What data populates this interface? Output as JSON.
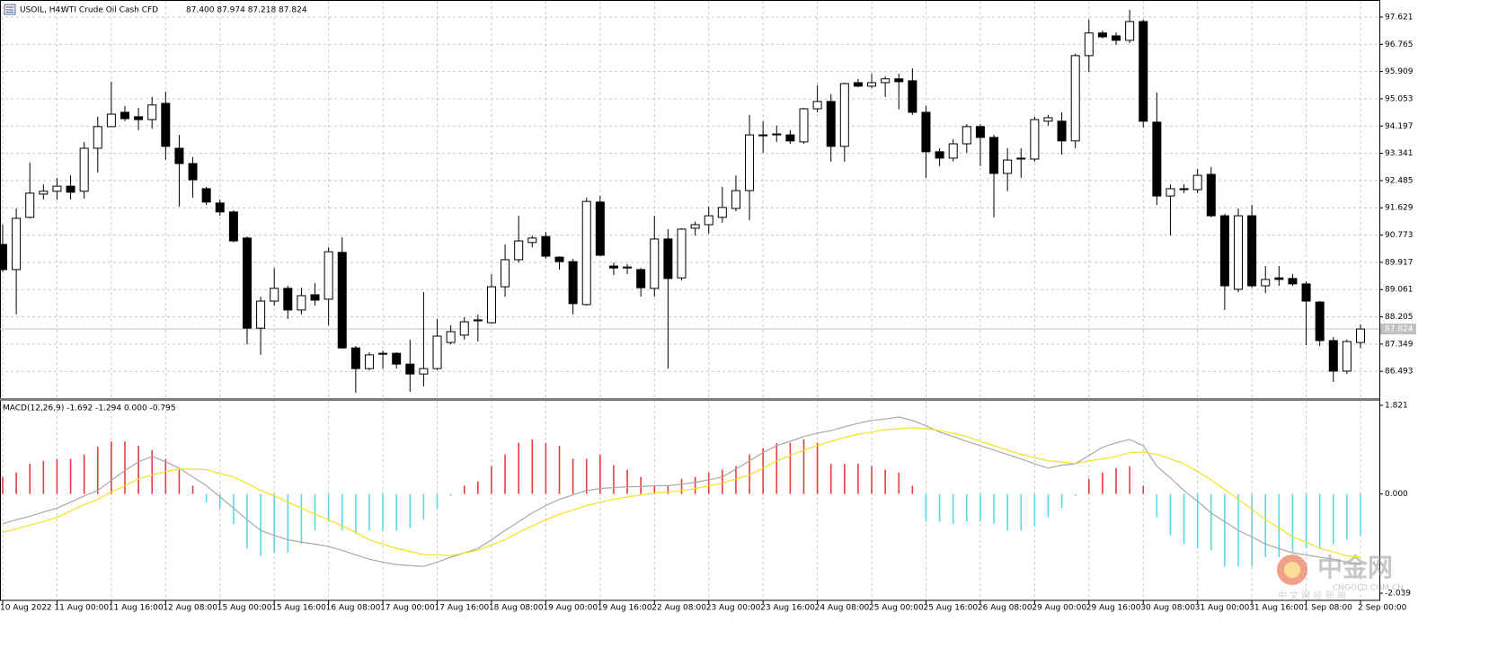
{
  "chart_data": [
    {
      "type": "candlestick",
      "title": "USOIL, H4:",
      "subtitle": "WTI Crude Oil Cash CFD",
      "ohlc_label": "87.400 87.974 87.218 87.824",
      "x": [
        "10 Aug 2022",
        null,
        null,
        null,
        "11 Aug 00:00",
        null,
        null,
        null,
        "11 Aug 16:00",
        null,
        null,
        null,
        "12 Aug 08:00",
        null,
        null,
        null,
        "15 Aug 00:00",
        null,
        null,
        null,
        "15 Aug 16:00",
        null,
        null,
        null,
        "16 Aug 08:00",
        null,
        null,
        null,
        "17 Aug 00:00",
        null,
        null,
        null,
        "17 Aug 16:00",
        null,
        null,
        null,
        "18 Aug 08:00",
        null,
        null,
        null,
        "19 Aug 00:00",
        null,
        null,
        null,
        "19 Aug 16:00",
        null,
        null,
        null,
        "22 Aug 08:00",
        null,
        null,
        null,
        "23 Aug 00:00",
        null,
        null,
        null,
        "23 Aug 16:00",
        null,
        null,
        null,
        "24 Aug 08:00",
        null,
        null,
        null,
        "25 Aug 00:00",
        null,
        null,
        null,
        "25 Aug 16:00",
        null,
        null,
        null,
        "26 Aug 08:00",
        null,
        null,
        null,
        "29 Aug 00:00",
        null,
        null,
        null,
        "29 Aug 16:00",
        null,
        null,
        null,
        "30 Aug 08:00",
        null,
        null,
        null,
        "31 Aug 00:00",
        null,
        null,
        null,
        "31 Aug 16:00",
        null,
        null,
        null,
        "1 Sep 08:00",
        null,
        null,
        null,
        "2 Sep 00:00"
      ],
      "open": [
        90.48,
        89.69,
        91.33,
        92.06,
        92.15,
        92.31,
        92.15,
        93.5,
        94.18,
        94.63,
        94.49,
        94.4,
        94.91,
        93.5,
        93.02,
        92.23,
        91.78,
        91.5,
        90.68,
        87.85,
        88.7,
        89.1,
        88.42,
        88.9,
        88.76,
        90.23,
        87.23,
        86.58,
        87.06,
        87.06,
        86.72,
        86.41,
        86.58,
        87.4,
        87.63,
        88.08,
        88.02,
        89.15,
        90.0,
        90.54,
        90.73,
        90.08,
        89.94,
        88.59,
        91.81,
        89.8,
        89.74,
        89.69,
        89.1,
        90.65,
        89.43,
        90.99,
        91.1,
        91.33,
        91.61,
        92.17,
        93.92,
        93.92,
        93.92,
        93.7,
        94.74,
        94.97,
        93.56,
        95.56,
        95.45,
        95.56,
        95.68,
        95.62,
        94.63,
        93.39,
        93.19,
        93.64,
        94.18,
        93.84,
        92.71,
        93.16,
        93.16,
        94.35,
        94.35,
        93.73,
        96.41,
        97.12,
        97.03,
        96.89,
        97.48,
        94.32,
        92.0,
        92.23,
        92.2,
        92.68,
        91.38,
        89.07,
        91.38,
        89.18,
        89.43,
        89.41,
        89.24,
        88.67,
        87.46,
        86.5,
        87.4
      ],
      "high": [
        91.1,
        91.61,
        93.05,
        92.37,
        92.57,
        92.65,
        93.7,
        94.49,
        95.59,
        94.83,
        94.77,
        95.11,
        95.28,
        93.92,
        93.22,
        92.29,
        91.89,
        91.55,
        90.73,
        88.84,
        89.74,
        89.18,
        89.12,
        89.26,
        90.39,
        90.7,
        87.29,
        87.09,
        87.15,
        87.09,
        87.49,
        88.98,
        88.14,
        87.94,
        88.19,
        88.28,
        89.55,
        90.48,
        91.38,
        90.76,
        90.87,
        90.11,
        90.03,
        91.95,
        92.0,
        89.91,
        89.86,
        89.74,
        91.38,
        90.96,
        90.99,
        91.19,
        91.67,
        92.29,
        92.65,
        94.55,
        94.35,
        94.21,
        94.07,
        94.77,
        95.48,
        95.2,
        95.56,
        95.68,
        95.84,
        95.76,
        95.84,
        96.01,
        94.83,
        93.5,
        93.78,
        94.26,
        94.26,
        93.92,
        93.5,
        93.5,
        94.49,
        94.55,
        94.63,
        96.47,
        97.54,
        97.2,
        97.14,
        97.85,
        97.54,
        95.25,
        92.37,
        92.37,
        92.85,
        92.91,
        91.44,
        91.61,
        91.72,
        89.8,
        89.8,
        89.55,
        89.32,
        88.7,
        87.57,
        87.49,
        87.974
      ],
      "low": [
        89.63,
        88.28,
        91.3,
        91.89,
        91.89,
        91.89,
        91.92,
        92.74,
        94.18,
        94.35,
        94.07,
        94.12,
        93.13,
        91.67,
        91.95,
        91.72,
        91.38,
        90.54,
        87.34,
        87.01,
        88.56,
        88.14,
        88.28,
        88.56,
        87.94,
        87.2,
        85.82,
        86.53,
        86.58,
        86.58,
        85.85,
        86.02,
        86.53,
        87.34,
        87.49,
        87.43,
        87.99,
        88.84,
        89.91,
        90.39,
        90.03,
        89.69,
        88.28,
        88.56,
        90.11,
        89.52,
        89.55,
        88.84,
        88.84,
        86.58,
        89.35,
        90.76,
        90.82,
        91.16,
        91.52,
        91.24,
        93.36,
        93.7,
        93.64,
        93.64,
        94.63,
        93.08,
        93.08,
        95.42,
        95.39,
        95.11,
        94.72,
        94.55,
        92.57,
        92.94,
        93.08,
        93.36,
        92.94,
        91.33,
        92.15,
        92.57,
        93.08,
        94.21,
        93.3,
        93.5,
        95.9,
        96.95,
        96.75,
        96.8,
        94.15,
        91.72,
        90.76,
        92.09,
        92.09,
        91.33,
        88.42,
        88.98,
        89.12,
        88.95,
        89.18,
        89.18,
        87.32,
        87.29,
        86.16,
        86.41,
        87.218
      ],
      "close": [
        89.69,
        91.3,
        92.09,
        92.15,
        92.31,
        92.12,
        93.5,
        94.18,
        94.57,
        94.43,
        94.4,
        94.86,
        93.56,
        93.02,
        92.51,
        91.81,
        91.5,
        90.59,
        87.85,
        88.7,
        89.1,
        88.42,
        88.87,
        88.73,
        90.25,
        87.23,
        86.58,
        87.01,
        87.03,
        86.72,
        86.41,
        86.58,
        87.6,
        87.74,
        88.05,
        88.11,
        89.15,
        90.0,
        90.59,
        90.68,
        90.11,
        89.94,
        88.62,
        91.83,
        90.14,
        89.74,
        89.77,
        89.12,
        90.65,
        89.41,
        90.96,
        91.1,
        91.38,
        91.64,
        92.17,
        93.92,
        93.9,
        93.95,
        93.73,
        94.74,
        94.97,
        93.56,
        95.53,
        95.45,
        95.56,
        95.68,
        95.59,
        94.63,
        93.39,
        93.19,
        93.64,
        94.18,
        93.84,
        92.71,
        93.13,
        93.19,
        94.4,
        94.46,
        93.73,
        96.41,
        97.12,
        97.0,
        96.89,
        97.48,
        94.35,
        92.0,
        92.23,
        92.2,
        92.65,
        91.38,
        89.18,
        91.38,
        89.18,
        89.38,
        89.38,
        89.24,
        88.7,
        87.46,
        86.5,
        87.43,
        87.824
      ],
      "up_color": "#ffffff",
      "down_color": "#000000",
      "last_price": 87.824,
      "ylim": [
        85.68,
        98.1
      ],
      "yticks": [
        97.621,
        96.765,
        95.909,
        95.053,
        94.197,
        93.341,
        92.485,
        91.629,
        90.773,
        89.917,
        89.061,
        88.205,
        87.349,
        86.493
      ],
      "grid": true
    },
    {
      "type": "macd",
      "title": "MACD(12,26,9) -1.692 -1.294 0.000 -0.795",
      "histogram": {
        "values": [
          0.35,
          0.44,
          0.62,
          0.68,
          0.72,
          0.72,
          0.81,
          0.97,
          1.08,
          1.08,
          0.99,
          0.9,
          0.72,
          0.5,
          0.17,
          -0.17,
          -0.29,
          -0.62,
          -1.12,
          -1.27,
          -1.21,
          -1.21,
          -1.03,
          -0.75,
          -0.57,
          -0.75,
          -0.81,
          -0.75,
          -0.75,
          -0.75,
          -0.7,
          -0.53,
          -0.29,
          -0.04,
          0.17,
          0.26,
          0.57,
          0.81,
          1.05,
          1.12,
          1.05,
          0.99,
          0.72,
          0.72,
          0.81,
          0.59,
          0.5,
          0.35,
          0.17,
          0.17,
          0.31,
          0.35,
          0.44,
          0.5,
          0.57,
          0.81,
          0.94,
          1.05,
          1.05,
          1.12,
          1.05,
          0.62,
          0.62,
          0.62,
          0.57,
          0.5,
          0.44,
          0.17,
          -0.57,
          -0.57,
          -0.61,
          -0.57,
          -0.57,
          -0.61,
          -0.75,
          -0.75,
          -0.66,
          -0.48,
          -0.29,
          -0.04,
          0.31,
          0.44,
          0.53,
          0.57,
          0.17,
          -0.48,
          -0.85,
          -1.03,
          -1.12,
          -1.16,
          -1.49,
          -1.49,
          -1.49,
          -1.3,
          -1.3,
          -1.21,
          -1.12,
          -1.12,
          -1.03,
          -0.94,
          -0.85
        ],
        "positive_color": "#e83c3c",
        "negative_color": "#5ad8e6"
      },
      "series": [
        {
          "color": "#a8a8a8",
          "values": [
            -0.61,
            -0.53,
            -0.46,
            -0.37,
            -0.29,
            -0.17,
            -0.04,
            0.07,
            0.28,
            0.48,
            0.66,
            0.77,
            0.66,
            0.53,
            0.35,
            0.17,
            -0.06,
            -0.29,
            -0.53,
            -0.75,
            -0.85,
            -0.94,
            -0.99,
            -1.03,
            -1.08,
            -1.16,
            -1.25,
            -1.34,
            -1.4,
            -1.45,
            -1.47,
            -1.49,
            -1.4,
            -1.3,
            -1.21,
            -1.12,
            -0.94,
            -0.75,
            -0.57,
            -0.39,
            -0.24,
            -0.11,
            -0.02,
            0.07,
            0.11,
            0.13,
            0.15,
            0.15,
            0.17,
            0.17,
            0.2,
            0.24,
            0.29,
            0.35,
            0.51,
            0.68,
            0.85,
            0.99,
            1.08,
            1.18,
            1.25,
            1.3,
            1.38,
            1.45,
            1.51,
            1.54,
            1.58,
            1.51,
            1.4,
            1.27,
            1.18,
            1.08,
            0.99,
            0.9,
            0.81,
            0.72,
            0.62,
            0.53,
            0.59,
            0.62,
            0.79,
            0.96,
            1.05,
            1.12,
            0.99,
            0.57,
            0.33,
            0.07,
            -0.15,
            -0.39,
            -0.57,
            -0.75,
            -0.88,
            -1.03,
            -1.12,
            -1.21,
            -1.25,
            -1.3,
            -1.34,
            -1.4,
            -1.45
          ]
        },
        {
          "color": "#f2e21c",
          "values": [
            -0.79,
            -0.72,
            -0.64,
            -0.57,
            -0.48,
            -0.35,
            -0.22,
            -0.11,
            0.04,
            0.17,
            0.31,
            0.39,
            0.46,
            0.51,
            0.51,
            0.5,
            0.42,
            0.35,
            0.22,
            0.07,
            -0.04,
            -0.17,
            -0.29,
            -0.42,
            -0.53,
            -0.66,
            -0.79,
            -0.94,
            -1.03,
            -1.12,
            -1.18,
            -1.25,
            -1.25,
            -1.27,
            -1.21,
            -1.16,
            -1.05,
            -0.94,
            -0.79,
            -0.66,
            -0.53,
            -0.42,
            -0.33,
            -0.24,
            -0.17,
            -0.11,
            -0.06,
            -0.02,
            0.02,
            0.04,
            0.07,
            0.11,
            0.17,
            0.22,
            0.31,
            0.39,
            0.53,
            0.68,
            0.79,
            0.9,
            0.99,
            1.08,
            1.16,
            1.23,
            1.27,
            1.32,
            1.34,
            1.36,
            1.34,
            1.3,
            1.25,
            1.18,
            1.08,
            0.99,
            0.9,
            0.81,
            0.75,
            0.68,
            0.66,
            0.62,
            0.68,
            0.72,
            0.77,
            0.85,
            0.86,
            0.81,
            0.72,
            0.62,
            0.46,
            0.29,
            0.09,
            -0.11,
            -0.31,
            -0.53,
            -0.7,
            -0.88,
            -0.99,
            -1.12,
            -1.19,
            -1.27,
            -1.3
          ]
        }
      ],
      "ylim": [
        -2.186,
        1.913
      ],
      "yticks": [
        1.821,
        {
          "value": 0,
          "label": "0.000"
        },
        -2.039
      ]
    }
  ],
  "watermark": {
    "brand": "中金网",
    "site": "CNGOLD.COM.CN",
    "tagline": "中 文 财 经 新 闻"
  }
}
